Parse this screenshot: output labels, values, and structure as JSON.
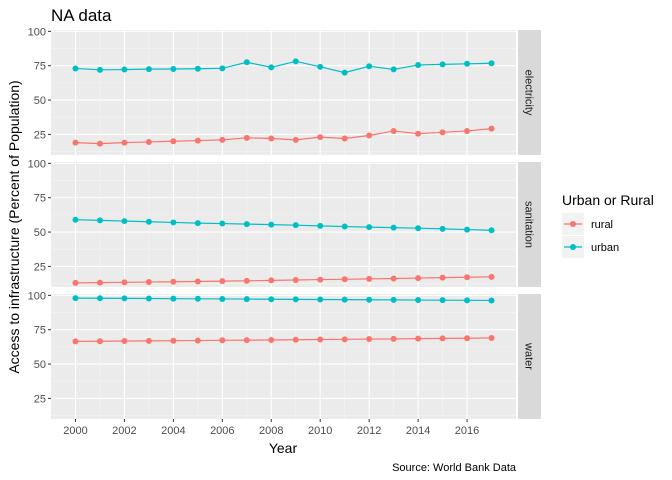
{
  "chart_data": {
    "type": "line",
    "title": "NA data",
    "xlabel": "Year",
    "ylabel": "Access to infrastructure (Percent of Population)",
    "caption": "Source: World Bank Data",
    "legend_title": "Urban or Rural",
    "legend_position": "right",
    "grid": true,
    "x": [
      2000,
      2001,
      2002,
      2003,
      2004,
      2005,
      2006,
      2007,
      2008,
      2009,
      2010,
      2011,
      2012,
      2013,
      2014,
      2015,
      2016,
      2017
    ],
    "xlim": [
      1999,
      2018
    ],
    "x_ticks": [
      2000,
      2002,
      2004,
      2006,
      2008,
      2010,
      2012,
      2014,
      2016
    ],
    "ylim": [
      10,
      101
    ],
    "y_ticks": [
      25,
      50,
      75,
      100
    ],
    "series_meta": [
      {
        "name": "rural",
        "color": "#F8766D"
      },
      {
        "name": "urban",
        "color": "#00BFC4"
      }
    ],
    "facets": [
      {
        "label": "electricity",
        "series": [
          {
            "name": "rural",
            "values": [
              19,
              18.3,
              19,
              19.5,
              20,
              20.5,
              21,
              22.5,
              22,
              21,
              23,
              22,
              24.2,
              27.5,
              25.5,
              26.5,
              27.5,
              29.2
            ]
          },
          {
            "name": "urban",
            "values": [
              73,
              72,
              72.2,
              72.5,
              72.6,
              72.8,
              73.1,
              77.5,
              73.8,
              78.2,
              74.2,
              70,
              74.6,
              72.3,
              75.5,
              76,
              76.4,
              76.8
            ]
          }
        ]
      },
      {
        "label": "sanitation",
        "series": [
          {
            "name": "rural",
            "values": [
              13,
              13.2,
              13.4,
              13.6,
              13.8,
              14,
              14.3,
              14.5,
              14.8,
              15.1,
              15.4,
              15.6,
              15.9,
              16.2,
              16.5,
              16.8,
              17.1,
              17.4
            ]
          },
          {
            "name": "urban",
            "values": [
              59,
              58.5,
              58,
              57.5,
              57,
              56.5,
              56.2,
              55.8,
              55.4,
              55,
              54.5,
              54,
              53.6,
              53.2,
              52.8,
              52.3,
              51.8,
              51.3
            ]
          }
        ]
      },
      {
        "label": "water",
        "series": [
          {
            "name": "rural",
            "values": [
              66.5,
              66.6,
              66.8,
              66.9,
              67,
              67.1,
              67.3,
              67.4,
              67.5,
              67.7,
              67.9,
              68,
              68.2,
              68.3,
              68.5,
              68.7,
              68.8,
              69
            ]
          },
          {
            "name": "urban",
            "values": [
              98,
              97.9,
              97.8,
              97.7,
              97.6,
              97.5,
              97.4,
              97.3,
              97.2,
              97.1,
              97,
              96.9,
              96.8,
              96.7,
              96.6,
              96.5,
              96.4,
              96.3
            ]
          }
        ]
      }
    ]
  }
}
